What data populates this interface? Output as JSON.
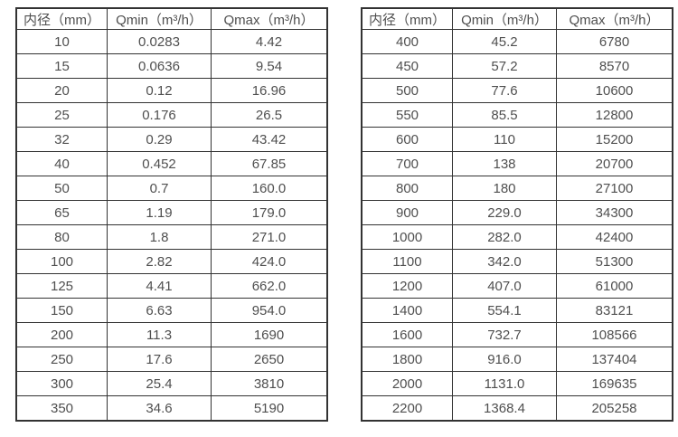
{
  "page": {
    "background": "#ffffff",
    "text_color": "#4f4f4f",
    "border_color": "#333333"
  },
  "chart_data": [
    {
      "type": "table",
      "title": "",
      "columns": [
        "内径（mm）",
        "Qmin（m³/h）",
        "Qmax（m³/h）"
      ],
      "rows": [
        [
          "10",
          "0.0283",
          "4.42"
        ],
        [
          "15",
          "0.0636",
          "9.54"
        ],
        [
          "20",
          "0.12",
          "16.96"
        ],
        [
          "25",
          "0.176",
          "26.5"
        ],
        [
          "32",
          "0.29",
          "43.42"
        ],
        [
          "40",
          "0.452",
          "67.85"
        ],
        [
          "50",
          "0.7",
          "160.0"
        ],
        [
          "65",
          "1.19",
          "179.0"
        ],
        [
          "80",
          "1.8",
          "271.0"
        ],
        [
          "100",
          "2.82",
          "424.0"
        ],
        [
          "125",
          "4.41",
          "662.0"
        ],
        [
          "150",
          "6.63",
          "954.0"
        ],
        [
          "200",
          "11.3",
          "1690"
        ],
        [
          "250",
          "17.6",
          "2650"
        ],
        [
          "300",
          "25.4",
          "3810"
        ],
        [
          "350",
          "34.6",
          "5190"
        ]
      ]
    },
    {
      "type": "table",
      "title": "",
      "columns": [
        "内径（mm）",
        "Qmin（m³/h）",
        "Qmax（m³/h）"
      ],
      "rows": [
        [
          "400",
          "45.2",
          "6780"
        ],
        [
          "450",
          "57.2",
          "8570"
        ],
        [
          "500",
          "77.6",
          "10600"
        ],
        [
          "550",
          "85.5",
          "12800"
        ],
        [
          "600",
          "110",
          "15200"
        ],
        [
          "700",
          "138",
          "20700"
        ],
        [
          "800",
          "180",
          "27100"
        ],
        [
          "900",
          "229.0",
          "34300"
        ],
        [
          "1000",
          "282.0",
          "42400"
        ],
        [
          "1100",
          "342.0",
          "51300"
        ],
        [
          "1200",
          "407.0",
          "61000"
        ],
        [
          "1400",
          "554.1",
          "83121"
        ],
        [
          "1600",
          "732.7",
          "108566"
        ],
        [
          "1800",
          "916.0",
          "137404"
        ],
        [
          "2000",
          "1131.0",
          "169635"
        ],
        [
          "2200",
          "1368.4",
          "205258"
        ]
      ]
    }
  ]
}
